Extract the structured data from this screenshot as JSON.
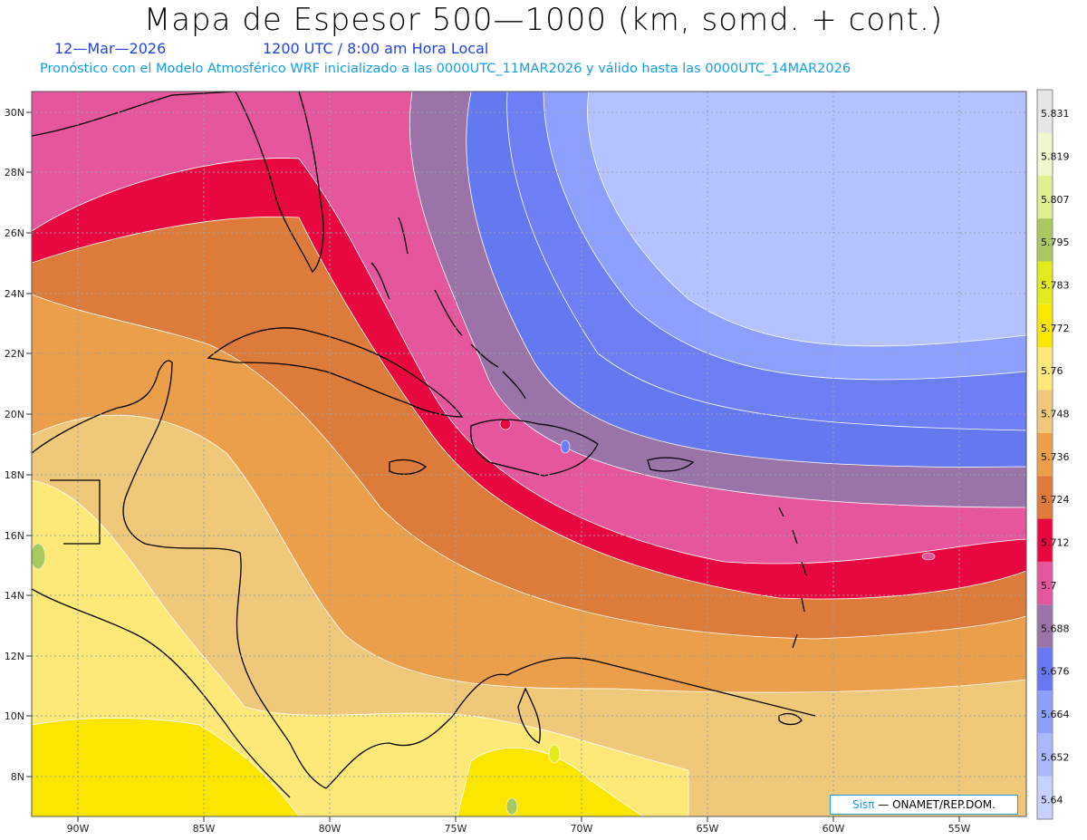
{
  "title": "Mapa de Espesor 500—1000 (km, somd. + cont.)",
  "date": "12—Mar—2026",
  "time": "1200 UTC / 8:00 am Hora Local",
  "forecast_line": "Pronóstico con el Modelo Atmosférico WRF inicializado a las 0000UTC_11MAR2026 y válido hasta las  0000UTC_14MAR2026",
  "credit": {
    "brand": "Sisπ",
    "rest": "— ONAMET/REP.DOM."
  },
  "lat_labels": [
    "30N",
    "28N",
    "26N",
    "24N",
    "22N",
    "20N",
    "18N",
    "16N",
    "14N",
    "12N",
    "10N",
    "8N"
  ],
  "lon_labels": [
    "90W",
    "85W",
    "80W",
    "75W",
    "70W",
    "65W",
    "60W",
    "55W"
  ],
  "colorbar": {
    "colors": [
      "#c7d1ff",
      "#aab8ff",
      "#8da0ff",
      "#6778f2",
      "#9a73a8",
      "#e5569c",
      "#e8073f",
      "#df7a3a",
      "#ec9f48",
      "#f0c87a",
      "#fde878",
      "#fbe600",
      "#e2ec1c",
      "#a7c95e",
      "#dff093",
      "#f2f6cf",
      "#e6e6e6"
    ],
    "labels": [
      "5.64",
      "5.652",
      "5.664",
      "5.676",
      "5.688",
      "5.7",
      "5.712",
      "5.724",
      "5.736",
      "5.748",
      "5.76",
      "5.772",
      "5.783",
      "5.795",
      "5.807",
      "5.819",
      "5.831"
    ]
  }
}
